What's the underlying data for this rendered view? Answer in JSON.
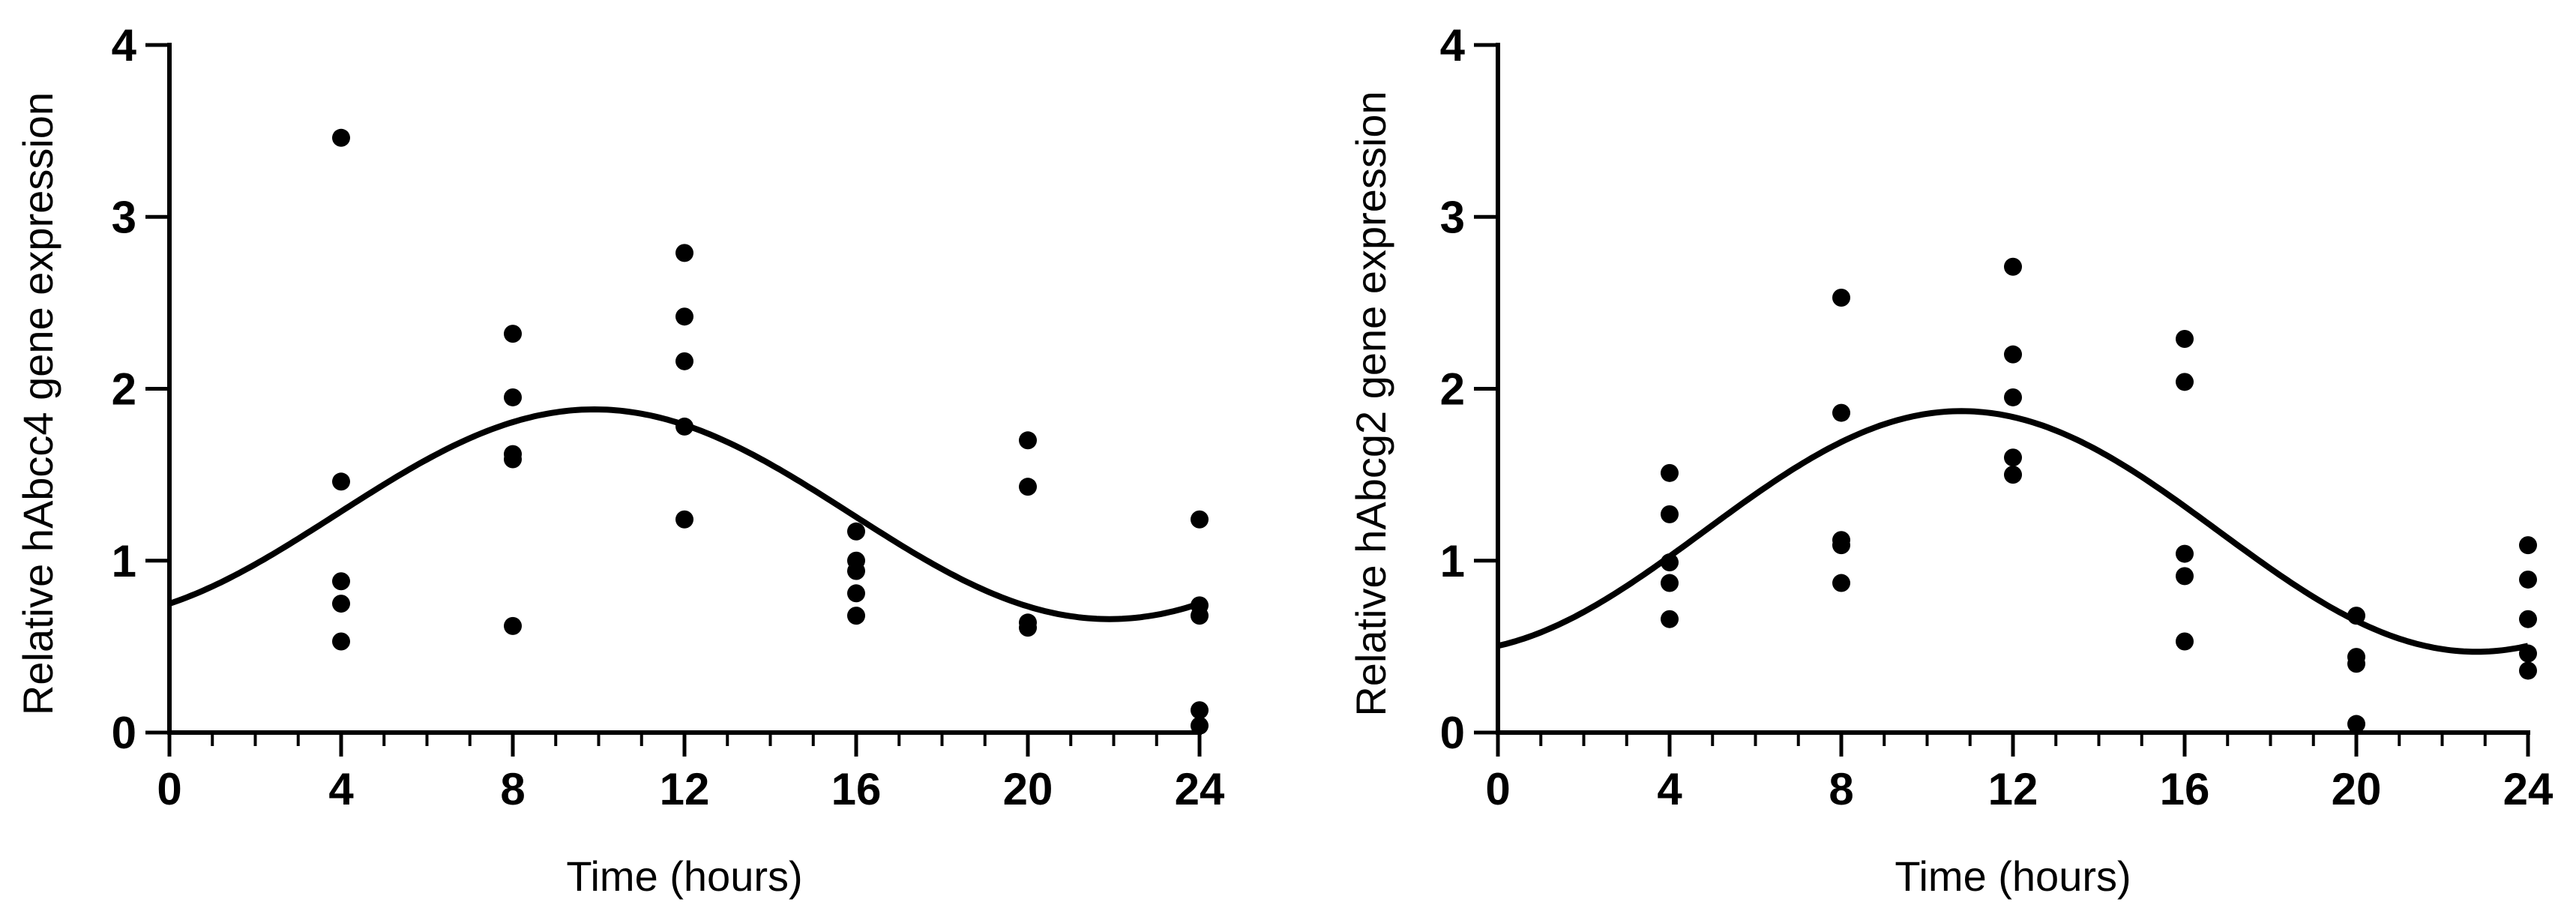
{
  "chart_data": [
    {
      "type": "scatter",
      "xlabel": "Time (hours)",
      "ylabel": "Relative hAbcc4 gene expression",
      "xlim": [
        0,
        24
      ],
      "ylim": [
        0,
        4
      ],
      "xticks": [
        "0",
        "4",
        "8",
        "12",
        "16",
        "20",
        "24"
      ],
      "yticks": [
        "0",
        "1",
        "2",
        "3",
        "4"
      ],
      "grid": false,
      "points": [
        [
          4,
          3.46
        ],
        [
          4,
          1.46
        ],
        [
          4,
          0.88
        ],
        [
          4,
          0.75
        ],
        [
          4,
          0.53
        ],
        [
          8,
          2.32
        ],
        [
          8,
          1.95
        ],
        [
          8,
          1.62
        ],
        [
          8,
          1.59
        ],
        [
          8,
          0.62
        ],
        [
          12,
          2.79
        ],
        [
          12,
          2.42
        ],
        [
          12,
          2.16
        ],
        [
          12,
          1.78
        ],
        [
          12,
          1.24
        ],
        [
          16,
          1.17
        ],
        [
          16,
          1.0
        ],
        [
          16,
          0.94
        ],
        [
          16,
          0.81
        ],
        [
          16,
          0.68
        ],
        [
          20,
          1.7
        ],
        [
          20,
          1.43
        ],
        [
          20,
          0.64
        ],
        [
          20,
          0.61
        ],
        [
          24,
          1.24
        ],
        [
          24,
          0.74
        ],
        [
          24,
          0.68
        ],
        [
          24,
          0.13
        ],
        [
          24,
          0.04
        ]
      ],
      "fit": {
        "model": "cosinor",
        "mesor": 1.27,
        "amplitude": 0.61,
        "peak_hour": 9.9,
        "period": 24
      }
    },
    {
      "type": "scatter",
      "xlabel": "Time (hours)",
      "ylabel": "Relative hAbcg2 gene expression",
      "xlim": [
        0,
        24
      ],
      "ylim": [
        0,
        4
      ],
      "xticks": [
        "0",
        "4",
        "8",
        "12",
        "16",
        "20",
        "24"
      ],
      "yticks": [
        "0",
        "1",
        "2",
        "3",
        "4"
      ],
      "grid": false,
      "points": [
        [
          4,
          1.51
        ],
        [
          4,
          1.27
        ],
        [
          4,
          0.99
        ],
        [
          4,
          0.87
        ],
        [
          4,
          0.66
        ],
        [
          8,
          2.53
        ],
        [
          8,
          1.86
        ],
        [
          8,
          1.12
        ],
        [
          8,
          1.09
        ],
        [
          8,
          0.87
        ],
        [
          12,
          2.71
        ],
        [
          12,
          2.2
        ],
        [
          12,
          1.95
        ],
        [
          12,
          1.6
        ],
        [
          12,
          1.5
        ],
        [
          16,
          2.29
        ],
        [
          16,
          2.04
        ],
        [
          16,
          1.04
        ],
        [
          16,
          0.91
        ],
        [
          16,
          0.53
        ],
        [
          20,
          0.68
        ],
        [
          20,
          0.44
        ],
        [
          20,
          0.4
        ],
        [
          20,
          0.05
        ],
        [
          24,
          1.09
        ],
        [
          24,
          0.89
        ],
        [
          24,
          0.66
        ],
        [
          24,
          0.46
        ],
        [
          24,
          0.36
        ]
      ],
      "fit": {
        "model": "cosinor",
        "mesor": 1.17,
        "amplitude": 0.7,
        "peak_hour": 10.8,
        "period": 24
      }
    }
  ]
}
